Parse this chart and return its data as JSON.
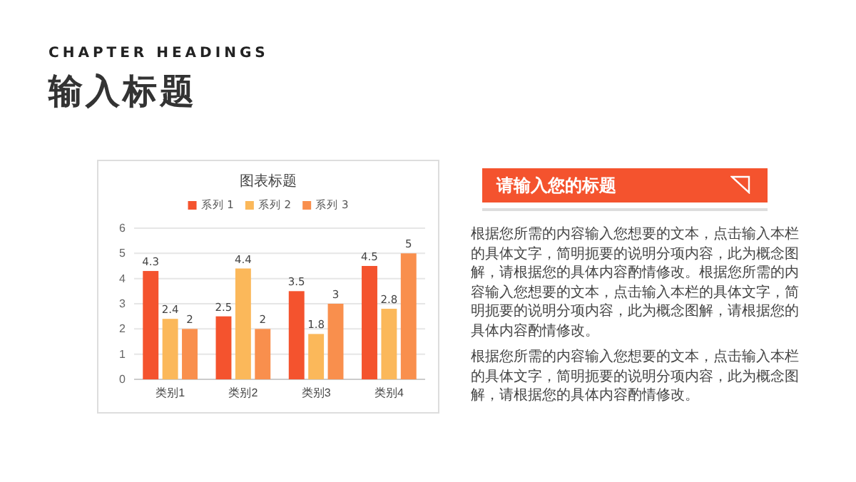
{
  "chart_data": {
    "type": "bar",
    "title": "图表标题",
    "categories": [
      "类别1",
      "类别2",
      "类别3",
      "类别4"
    ],
    "series": [
      {
        "name": "系列 1",
        "color": "#f4532e",
        "values": [
          4.3,
          2.5,
          3.5,
          4.5
        ]
      },
      {
        "name": "系列 2",
        "color": "#fbb85a",
        "values": [
          2.4,
          4.4,
          1.8,
          2.8
        ]
      },
      {
        "name": "系列 3",
        "color": "#f98f4d",
        "values": [
          2,
          2,
          3,
          5
        ]
      }
    ],
    "ylim": [
      0,
      6
    ],
    "yticks": [
      0,
      1,
      2,
      3,
      4,
      5,
      6
    ],
    "grid": "y",
    "legend": "top",
    "data_labels": true,
    "annotations": [
      "CHAPTER HEADINGS",
      "输入标题",
      "请输入您的标题",
      "根据您所需的内容输入您想要的文本，点击输入本栏的具体文字，简明扼要的说明分项内容，此为概念图解，请根据您的具体内容酌情修改。根据您所需的内容输入您想要的文本，点击输入本栏的具体文字，简明扼要的说明分项内容，此为概念图解，请根据您的具体内容酌情修改。",
      "根据您所需的内容输入您想要的文本，点击输入本栏的具体文字，简明扼要的说明分项内容，此为概念图解，请根据您的具体内容酌情修改。"
    ]
  }
}
